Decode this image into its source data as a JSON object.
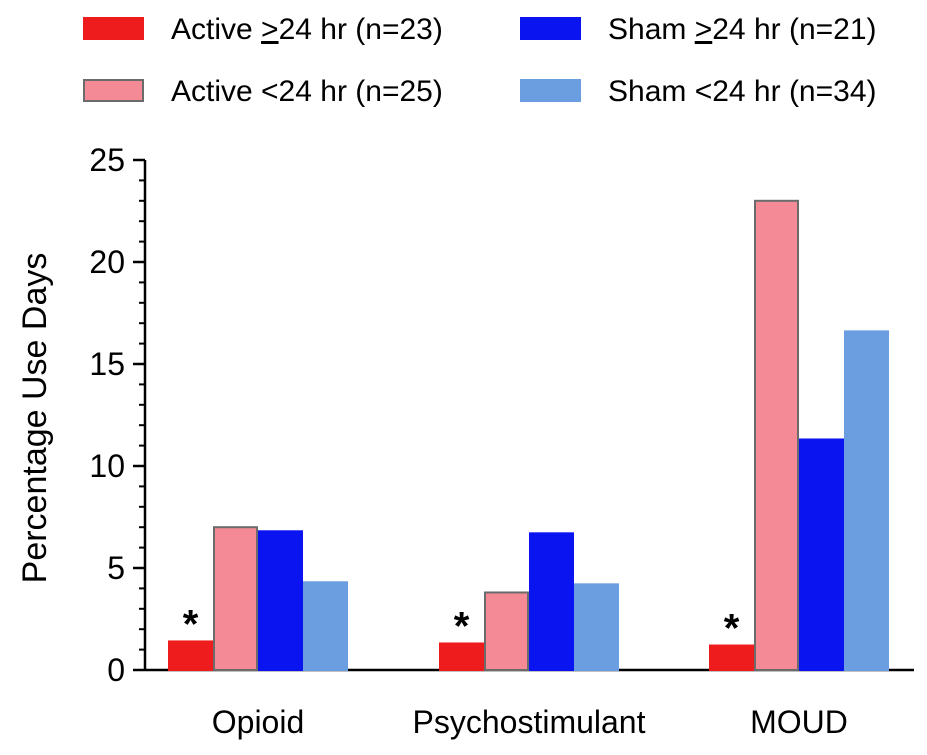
{
  "chart_data": {
    "type": "bar",
    "title": "",
    "xlabel": "",
    "ylabel": "Percentage Use Days",
    "ylim": [
      0,
      25
    ],
    "yticks": [
      0,
      5,
      10,
      15,
      20,
      25
    ],
    "y_minor_step": 1,
    "grid": false,
    "legend_position": "top",
    "categories": [
      "Opioid",
      "Psychostimulant",
      "MOUD"
    ],
    "series": [
      {
        "name": "Active ≥24 hr (n=23)",
        "legend_prefix": "Active ",
        "legend_symbol": ">",
        "legend_suffix": "24 hr (n=23)",
        "color": "#ee1c1c",
        "border": "#ee1c1c",
        "values": [
          1.4,
          1.3,
          1.2
        ]
      },
      {
        "name": "Active <24 hr (n=25)",
        "legend_prefix": "Active <24 hr (n=25)",
        "legend_symbol": "",
        "legend_suffix": "",
        "color": "#f48a96",
        "border": "#6b6b6b",
        "values": [
          7.0,
          3.8,
          23.0
        ]
      },
      {
        "name": "Sham ≥24 hr (n=21)",
        "legend_prefix": "Sham ",
        "legend_symbol": ">",
        "legend_suffix": "24 hr (n=21)",
        "color": "#0a14f0",
        "border": "#0a14f0",
        "values": [
          6.8,
          6.7,
          11.3
        ]
      },
      {
        "name": "Sham <24 hr (n=34)",
        "legend_prefix": "Sham <24 hr (n=34)",
        "legend_symbol": "",
        "legend_suffix": "",
        "color": "#6b9ee0",
        "border": "#6b9ee0",
        "values": [
          4.3,
          4.2,
          16.6
        ]
      }
    ],
    "annotations": [
      {
        "category": "Opioid",
        "text": "*"
      },
      {
        "category": "Psychostimulant",
        "text": "*"
      },
      {
        "category": "MOUD",
        "text": "*"
      }
    ]
  }
}
